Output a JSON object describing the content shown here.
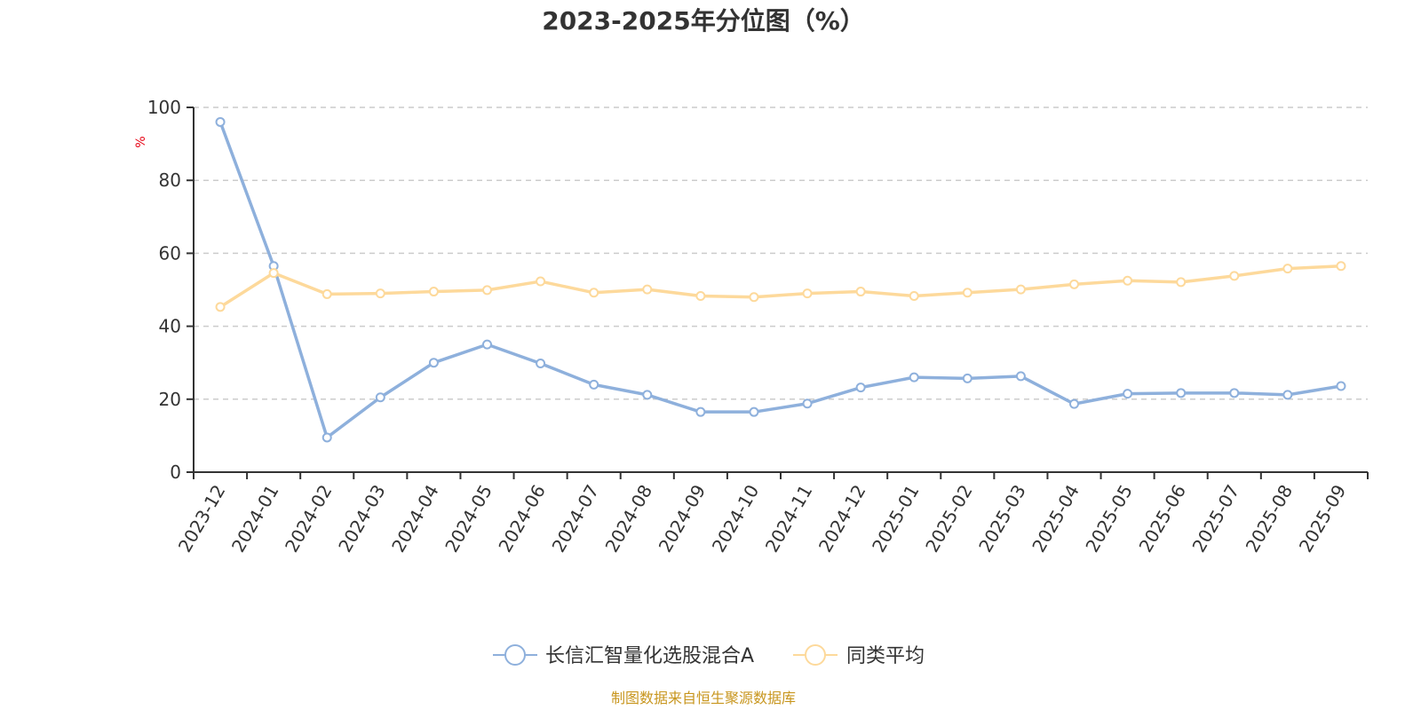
{
  "chart_data": {
    "type": "line",
    "title": "2023-2025年分位图（%）",
    "ylabel": "%",
    "xlabel": "",
    "ylim": [
      0,
      100
    ],
    "yticks": [
      0,
      20,
      40,
      60,
      80,
      100
    ],
    "grid": true,
    "legend_position": "bottom",
    "categories": [
      "2023-12",
      "2024-01",
      "2024-02",
      "2024-03",
      "2024-04",
      "2024-05",
      "2024-06",
      "2024-07",
      "2024-08",
      "2024-09",
      "2024-10",
      "2024-11",
      "2024-12",
      "2025-01",
      "2025-02",
      "2025-03",
      "2025-04",
      "2025-05",
      "2025-06",
      "2025-07",
      "2025-08",
      "2025-09"
    ],
    "series": [
      {
        "name": "长信汇智量化选股混合A",
        "color": "#8eb0dc",
        "values": [
          96,
          56.5,
          9.5,
          20.5,
          30,
          35,
          29.8,
          24,
          21.2,
          16.5,
          16.5,
          18.8,
          23.2,
          26,
          25.7,
          26.3,
          18.7,
          21.5,
          21.7,
          21.7,
          21.2,
          23.6
        ]
      },
      {
        "name": "同类平均",
        "color": "#fdd99b",
        "values": [
          45.3,
          54.6,
          48.8,
          49,
          49.5,
          49.9,
          52.3,
          49.2,
          50.1,
          48.3,
          48,
          49,
          49.5,
          48.3,
          49.2,
          50.1,
          51.5,
          52.5,
          52.1,
          53.8,
          55.8,
          56.5
        ]
      }
    ],
    "source": "制图数据来自恒生聚源数据库",
    "colors": {
      "ylabel": "#e60012",
      "source": "#c8961e",
      "axis": "#333333",
      "grid": "#cccccc"
    }
  }
}
